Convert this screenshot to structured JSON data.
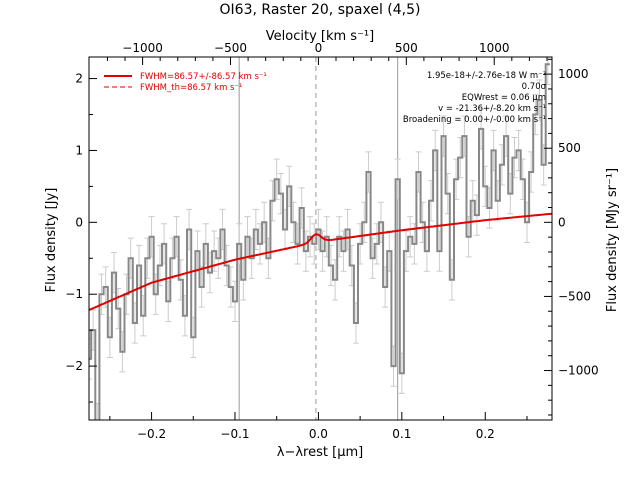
{
  "chart_data": {
    "type": "line",
    "title": "OI63, Raster 20, spaxel (4,5)",
    "xlabel": "λ−λrest [μm]",
    "ylabel": "Flux density [Jy]",
    "ylabel_right": "Flux density [MJy sr⁻¹]",
    "xlabel_top": "Velocity [km s⁻¹]",
    "xlim": [
      -0.275,
      0.28
    ],
    "ylim": [
      -2.75,
      2.3
    ],
    "x_ticks": [
      -0.2,
      -0.1,
      0.0,
      0.1,
      0.2
    ],
    "x_tick_labels": [
      "−0.2",
      "−0.1",
      "0.0",
      "0.1",
      "0.2"
    ],
    "y_ticks": [
      -2,
      -1,
      0,
      1,
      2
    ],
    "y_tick_labels": [
      "−2",
      "−1",
      "0",
      "1",
      "2"
    ],
    "top_ticks": [
      -1000,
      -500,
      0,
      500,
      1000
    ],
    "top_tick_labels": [
      "−1000",
      "−500",
      "0",
      "500",
      "1000"
    ],
    "right_ticks": [
      -1000,
      -500,
      0,
      500,
      1000
    ],
    "right_tick_labels": [
      "−1000",
      "−500",
      "0",
      "500",
      "1000"
    ],
    "vertical_lines": [
      {
        "x": -0.095,
        "style": "solid",
        "color": "#999999"
      },
      {
        "x": -0.003,
        "style": "dashed",
        "color": "#999999"
      },
      {
        "x": 0.095,
        "style": "solid",
        "color": "#999999"
      }
    ],
    "legend": [
      {
        "label": "FWHM=86.57+/-86.57 km s⁻¹",
        "style": "solid",
        "color": "#e00000"
      },
      {
        "label": "FWHM_th=86.57 km s⁻¹",
        "style": "dashed",
        "color": "#e00000"
      }
    ],
    "annotations": [
      "1.95e-18+/-2.76e-18 W m⁻²",
      "0.70σ",
      "EQWrest = 0.06 μm",
      "v = -21.36+/-8.20 km s⁻¹",
      "Broadening = 0.00+/-0.00 km s⁻¹"
    ],
    "series": [
      {
        "style": "steps",
        "color": "#888888",
        "x": [
          -0.275,
          -0.27,
          -0.265,
          -0.26,
          -0.255,
          -0.25,
          -0.245,
          -0.24,
          -0.235,
          -0.23,
          -0.225,
          -0.22,
          -0.215,
          -0.21,
          -0.205,
          -0.2,
          -0.195,
          -0.19,
          -0.185,
          -0.18,
          -0.175,
          -0.17,
          -0.165,
          -0.16,
          -0.155,
          -0.15,
          -0.145,
          -0.14,
          -0.135,
          -0.13,
          -0.125,
          -0.12,
          -0.115,
          -0.11,
          -0.105,
          -0.1,
          -0.095,
          -0.09,
          -0.085,
          -0.08,
          -0.075,
          -0.07,
          -0.065,
          -0.06,
          -0.055,
          -0.05,
          -0.045,
          -0.04,
          -0.035,
          -0.03,
          -0.025,
          -0.02,
          -0.015,
          -0.01,
          -0.005,
          0.0,
          0.005,
          0.01,
          0.015,
          0.02,
          0.025,
          0.03,
          0.035,
          0.04,
          0.045,
          0.05,
          0.055,
          0.06,
          0.065,
          0.07,
          0.075,
          0.08,
          0.085,
          0.09,
          0.095,
          0.1,
          0.105,
          0.11,
          0.115,
          0.12,
          0.125,
          0.13,
          0.135,
          0.14,
          0.145,
          0.15,
          0.155,
          0.16,
          0.165,
          0.17,
          0.175,
          0.18,
          0.185,
          0.19,
          0.195,
          0.2,
          0.205,
          0.21,
          0.215,
          0.22,
          0.225,
          0.23,
          0.235,
          0.24,
          0.245,
          0.25,
          0.255,
          0.26,
          0.265,
          0.27,
          0.275
        ],
        "y": [
          -1.9,
          -1.5,
          -2.8,
          -1.0,
          -0.9,
          -1.6,
          -0.7,
          -1.2,
          -1.8,
          -1.0,
          -0.5,
          -1.4,
          -0.6,
          -1.3,
          -0.5,
          -0.2,
          -1.0,
          -0.6,
          -0.3,
          -1.1,
          -0.5,
          -0.2,
          -0.8,
          -1.3,
          -0.1,
          -1.6,
          -0.4,
          -0.9,
          -0.3,
          -0.7,
          -0.4,
          -0.5,
          -0.1,
          -0.6,
          -0.9,
          -1.1,
          -0.3,
          -0.8,
          -0.2,
          -0.5,
          -0.1,
          -0.3,
          0.0,
          -0.5,
          0.3,
          0.6,
          0.4,
          -0.1,
          0.5,
          0.0,
          -0.3,
          0.2,
          -0.4,
          -0.2,
          -0.3,
          -0.1,
          -0.4,
          -0.2,
          -0.6,
          -0.8,
          -0.2,
          -0.4,
          -0.1,
          -0.6,
          -1.4,
          -0.3,
          0.0,
          0.7,
          -0.5,
          -0.3,
          0.0,
          -0.9,
          -0.4,
          -2.0,
          0.6,
          -2.1,
          -0.4,
          -0.2,
          -0.3,
          0.7,
          0.0,
          -0.4,
          0.3,
          1.0,
          -0.4,
          1.2,
          0.4,
          -0.8,
          0.6,
          0.9,
          1.2,
          -0.2,
          0.3,
          0.1,
          1.3,
          0.5,
          0.2,
          1.0,
          0.3,
          0.8,
          1.2,
          0.4,
          0.9,
          1.0,
          0.6,
          0.0,
          0.7,
          1.5,
          1.7,
          0.8,
          2.2
        ]
      },
      {
        "name": "FWHM=86.57+/-86.57 km s⁻¹",
        "style": "smooth",
        "color": "#e00000",
        "continuum": {
          "x": [
            -0.275,
            -0.2,
            -0.1,
            0.0,
            0.1,
            0.2,
            0.28
          ],
          "y": [
            -1.22,
            -0.84,
            -0.52,
            -0.27,
            -0.11,
            0.03,
            0.12
          ]
        },
        "line_center": -0.003,
        "line_peak": 0.11,
        "line_sigma": 0.006
      }
    ]
  }
}
